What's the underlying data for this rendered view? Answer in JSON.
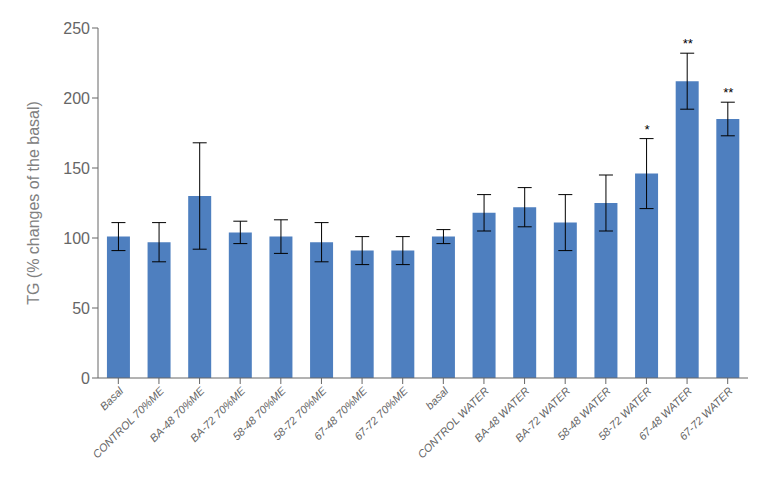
{
  "chart_data": {
    "type": "bar",
    "categories": [
      "Basal",
      "CONTROL 70%ME",
      "BA-48 70%ME",
      "BA-72 70%ME",
      "58-48 70%ME",
      "58-72 70%ME",
      "67-48 70%ME",
      "67-72 70%ME",
      "basal",
      "CONTROL WATER",
      "BA-48 WATER",
      "BA-72 WATER",
      "58-48 WATER",
      "58-72 WATER",
      "67-48 WATER",
      "67-72 WATER"
    ],
    "values": [
      101,
      97,
      130,
      104,
      101,
      97,
      91,
      91,
      101,
      118,
      122,
      111,
      125,
      146,
      212,
      185
    ],
    "errors": [
      10,
      14,
      38,
      8,
      12,
      14,
      10,
      10,
      5,
      13,
      14,
      20,
      20,
      25,
      20,
      12
    ],
    "significance": [
      null,
      null,
      null,
      null,
      null,
      null,
      null,
      null,
      null,
      null,
      null,
      null,
      null,
      "*",
      "**",
      "**"
    ],
    "color": "#4E7FBF",
    "ylabel": "TG (% changes of the basal)",
    "ylim": [
      0,
      250
    ],
    "yticks": [
      0,
      50,
      100,
      150,
      200,
      250
    ],
    "grid": false
  }
}
